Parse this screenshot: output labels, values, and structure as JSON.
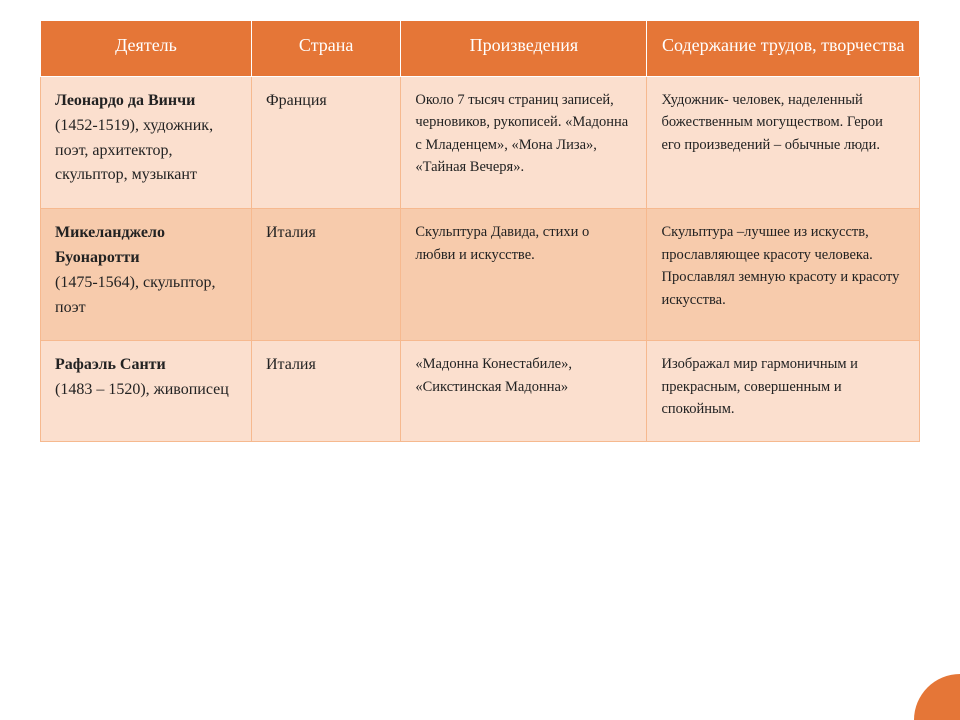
{
  "table": {
    "header": {
      "bg": "#e57637",
      "border": "#ffffff",
      "text_color": "#ffffff",
      "fontsize": 18
    },
    "columns": [
      {
        "key": "figure",
        "label": "Деятель"
      },
      {
        "key": "country",
        "label": "Страна"
      },
      {
        "key": "works",
        "label": "Произведения"
      },
      {
        "key": "content",
        "label": "Содержание трудов, творчества"
      }
    ],
    "body_fontsize": 16,
    "small_fontsize": 14.5,
    "rows": [
      {
        "bg": "#fbdfce",
        "border": "#f6b98f",
        "figure_name": "Леонардо да Винчи",
        "figure_rest": "(1452-1519), художник, поэт, архитектор, скульптор, музыкант",
        "country": "Франция",
        "works": "Около 7 тысяч страниц записей, черновиков, рукописей. «Мадонна с Младенцем», «Мона Лиза», «Тайная Вечеря».",
        "content": "Художник- человек, наделенный божественным могуществом. Герои его произведений – обычные люди."
      },
      {
        "bg": "#f7cbac",
        "border": "#f6b98f",
        "figure_name": "Микеланджело Буонаротти",
        "figure_rest": "(1475-1564), скульптор, поэт",
        "country": "Италия",
        "works": "Скульптура Давида, стихи о любви и искусстве.",
        "content": "Скульптура –лучшее из искусств, прославляющее красоту человека. Прославлял земную красоту и красоту искусства."
      },
      {
        "bg": "#fbdfce",
        "border": "#f6b98f",
        "figure_name": "Рафаэль Санти",
        "figure_rest": "(1483 – 1520), живописец",
        "country": "Италия",
        "works": "«Мадонна Конестабиле», «Сикстинская Мадонна»",
        "content": "Изображал мир гармоничным и прекрасным, совершенным и спокойным."
      }
    ]
  },
  "corner_accent_color": "#e57637"
}
